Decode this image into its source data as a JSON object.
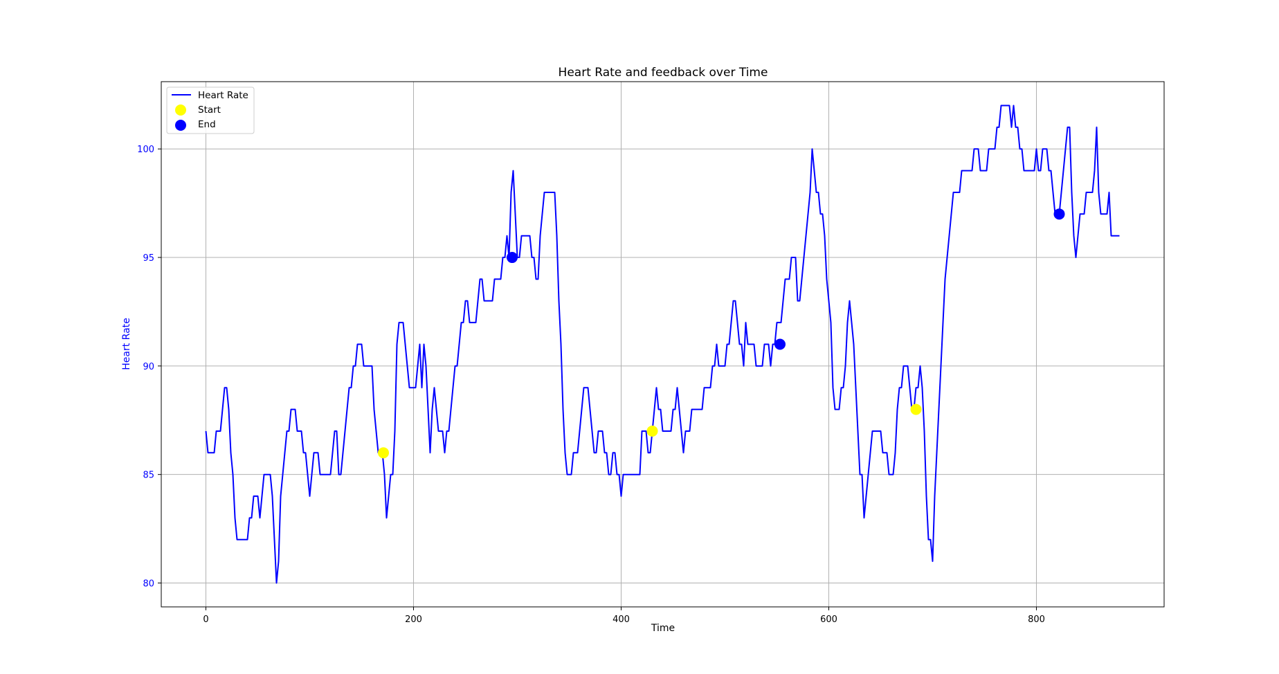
{
  "chart_data": {
    "type": "line",
    "title": "Heart Rate and feedback over Time",
    "xlabel": "Time",
    "ylabel": "Heart Rate",
    "xlim": [
      -43,
      923
    ],
    "ylim": [
      78.9,
      103.1
    ],
    "xticks": [
      0,
      200,
      400,
      600,
      800
    ],
    "yticks": [
      80,
      85,
      90,
      95,
      100
    ],
    "grid": true,
    "legend_position": "top-left",
    "colors": {
      "line": "#0000ff",
      "start": "#ffff00",
      "end": "#0000ff",
      "ylabel": "#0000ff",
      "axis": "#000000",
      "grid": "#b0b0b0"
    },
    "series": [
      {
        "name": "Heart Rate",
        "kind": "line",
        "x": [
          0,
          2,
          8,
          10,
          14,
          16,
          18,
          20,
          22,
          24,
          26,
          28,
          30,
          32,
          40,
          42,
          44,
          46,
          48,
          50,
          52,
          54,
          56,
          58,
          60,
          62,
          64,
          66,
          68,
          70,
          72,
          74,
          76,
          78,
          80,
          82,
          84,
          86,
          88,
          90,
          92,
          94,
          96,
          98,
          100,
          102,
          104,
          106,
          108,
          110,
          112,
          114,
          116,
          118,
          120,
          122,
          124,
          126,
          128,
          130,
          132,
          134,
          136,
          138,
          140,
          142,
          144,
          146,
          148,
          150,
          152,
          154,
          156,
          160,
          162,
          164,
          166,
          168,
          170,
          172,
          174,
          176,
          178,
          180,
          182,
          184,
          186,
          188,
          190,
          192,
          194,
          196,
          198,
          200,
          202,
          204,
          206,
          208,
          210,
          212,
          214,
          216,
          218,
          220,
          222,
          224,
          226,
          228,
          230,
          232,
          234,
          236,
          238,
          240,
          242,
          244,
          246,
          248,
          250,
          252,
          254,
          256,
          258,
          260,
          262,
          264,
          266,
          268,
          270,
          272,
          274,
          276,
          278,
          280,
          282,
          284,
          286,
          288,
          290,
          292,
          294,
          296,
          298,
          300,
          302,
          304,
          306,
          308,
          310,
          312,
          314,
          316,
          318,
          320,
          322,
          324,
          326,
          328,
          330,
          332,
          334,
          336,
          338,
          340,
          342,
          344,
          346,
          348,
          350,
          352,
          354,
          356,
          358,
          360,
          362,
          364,
          366,
          368,
          370,
          372,
          374,
          376,
          378,
          380,
          382,
          384,
          386,
          388,
          390,
          392,
          394,
          396,
          398,
          400,
          402,
          404,
          406,
          408,
          410,
          412,
          414,
          416,
          418,
          420,
          422,
          424,
          426,
          428,
          430,
          432,
          434,
          436,
          438,
          440,
          442,
          444,
          446,
          448,
          450,
          452,
          454,
          456,
          458,
          460,
          462,
          464,
          466,
          468,
          470,
          472,
          474,
          476,
          478,
          480,
          482,
          484,
          486,
          488,
          490,
          492,
          494,
          496,
          498,
          500,
          502,
          504,
          506,
          508,
          510,
          512,
          514,
          516,
          518,
          520,
          522,
          524,
          526,
          528,
          530,
          532,
          534,
          536,
          538,
          540,
          542,
          544,
          546,
          548,
          550,
          552,
          554,
          556,
          558,
          560,
          562,
          564,
          566,
          568,
          570,
          572,
          574,
          576,
          578,
          580,
          582,
          584,
          586,
          588,
          590,
          592,
          594,
          596,
          598,
          600,
          602,
          604,
          606,
          608,
          610,
          612,
          614,
          616,
          618,
          620,
          622,
          624,
          626,
          628,
          630,
          632,
          634,
          636,
          638,
          640,
          642,
          644,
          646,
          648,
          650,
          652,
          654,
          656,
          658,
          660,
          662,
          664,
          666,
          668,
          670,
          672,
          674,
          676,
          678,
          680,
          682,
          684,
          686,
          688,
          690,
          692,
          694,
          696,
          698,
          700,
          702,
          704,
          706,
          708,
          710,
          712,
          714,
          716,
          718,
          720,
          722,
          724,
          726,
          728,
          730,
          732,
          734,
          736,
          738,
          740,
          742,
          744,
          746,
          748,
          750,
          752,
          754,
          756,
          758,
          760,
          762,
          764,
          766,
          768,
          770,
          772,
          774,
          776,
          778,
          780,
          782,
          784,
          786,
          788,
          790,
          792,
          794,
          796,
          798,
          800,
          802,
          804,
          806,
          808,
          810,
          812,
          814,
          816,
          818,
          820,
          822,
          824,
          826,
          828,
          830,
          832,
          834,
          836,
          838,
          840,
          842,
          844,
          846,
          848,
          850,
          852,
          854,
          856,
          858,
          860,
          862,
          864,
          866,
          868,
          870,
          872,
          874,
          876,
          878,
          880
        ],
        "y": [
          87,
          86,
          86,
          87,
          87,
          88,
          89,
          89,
          88,
          86,
          85,
          83,
          82,
          82,
          82,
          83,
          83,
          84,
          84,
          84,
          83,
          84,
          85,
          85,
          85,
          85,
          84,
          82,
          80,
          81,
          84,
          85,
          86,
          87,
          87,
          88,
          88,
          88,
          87,
          87,
          87,
          86,
          86,
          85,
          84,
          85,
          86,
          86,
          86,
          85,
          85,
          85,
          85,
          85,
          85,
          86,
          87,
          87,
          85,
          85,
          86,
          87,
          88,
          89,
          89,
          90,
          90,
          91,
          91,
          91,
          90,
          90,
          90,
          90,
          88,
          87,
          86,
          86,
          86,
          85,
          83,
          84,
          85,
          85,
          87,
          91,
          92,
          92,
          92,
          91,
          90,
          89,
          89,
          89,
          89,
          90,
          91,
          89,
          91,
          90,
          88,
          86,
          88,
          89,
          88,
          87,
          87,
          87,
          86,
          87,
          87,
          88,
          89,
          90,
          90,
          91,
          92,
          92,
          93,
          93,
          92,
          92,
          92,
          92,
          93,
          94,
          94,
          93,
          93,
          93,
          93,
          93,
          94,
          94,
          94,
          94,
          95,
          95,
          96,
          95,
          98,
          99,
          97,
          95,
          95,
          96,
          96,
          96,
          96,
          96,
          95,
          95,
          94,
          94,
          96,
          97,
          98,
          98,
          98,
          98,
          98,
          98,
          96,
          93,
          91,
          88,
          86,
          85,
          85,
          85,
          86,
          86,
          86,
          87,
          88,
          89,
          89,
          89,
          88,
          87,
          86,
          86,
          87,
          87,
          87,
          86,
          86,
          85,
          85,
          86,
          86,
          85,
          85,
          84,
          85,
          85,
          85,
          85,
          85,
          85,
          85,
          85,
          85,
          87,
          87,
          87,
          86,
          86,
          87,
          88,
          89,
          88,
          88,
          87,
          87,
          87,
          87,
          87,
          88,
          88,
          89,
          88,
          87,
          86,
          87,
          87,
          87,
          88,
          88,
          88,
          88,
          88,
          88,
          89,
          89,
          89,
          89,
          90,
          90,
          91,
          90,
          90,
          90,
          90,
          91,
          91,
          92,
          93,
          93,
          92,
          91,
          91,
          90,
          92,
          91,
          91,
          91,
          91,
          90,
          90,
          90,
          90,
          91,
          91,
          91,
          90,
          91,
          91,
          92,
          92,
          92,
          93,
          94,
          94,
          94,
          95,
          95,
          95,
          93,
          93,
          94,
          95,
          96,
          97,
          98,
          100,
          99,
          98,
          98,
          97,
          97,
          96,
          94,
          93,
          92,
          89,
          88,
          88,
          88,
          89,
          89,
          90,
          92,
          93,
          92,
          91,
          89,
          87,
          85,
          85,
          83,
          84,
          85,
          86,
          87,
          87,
          87,
          87,
          87,
          86,
          86,
          86,
          85,
          85,
          85,
          86,
          88,
          89,
          89,
          90,
          90,
          90,
          89,
          88,
          88,
          89,
          89,
          90,
          89,
          87,
          84,
          82,
          82,
          81,
          84,
          86,
          88,
          90,
          92,
          94,
          95,
          96,
          97,
          98,
          98,
          98,
          98,
          99,
          99,
          99,
          99,
          99,
          99,
          100,
          100,
          100,
          99,
          99,
          99,
          99,
          100,
          100,
          100,
          100,
          101,
          101,
          102,
          102,
          102,
          102,
          102,
          101,
          102,
          101,
          101,
          100,
          100,
          99,
          99,
          99,
          99,
          99,
          99,
          100,
          99,
          99,
          100,
          100,
          100,
          99,
          99,
          98,
          97,
          97,
          97,
          98,
          99,
          100,
          101,
          101,
          98,
          96,
          95,
          96,
          97,
          97,
          97,
          98,
          98,
          98,
          98,
          99,
          101,
          98,
          97,
          97,
          97,
          97,
          98,
          96,
          96,
          96,
          96,
          96
        ]
      },
      {
        "name": "Start",
        "kind": "marker",
        "x": [
          171,
          430,
          684
        ],
        "y": [
          86,
          87,
          88
        ]
      },
      {
        "name": "End",
        "kind": "marker",
        "x": [
          295,
          553,
          822
        ],
        "y": [
          95,
          91,
          97
        ]
      }
    ]
  }
}
